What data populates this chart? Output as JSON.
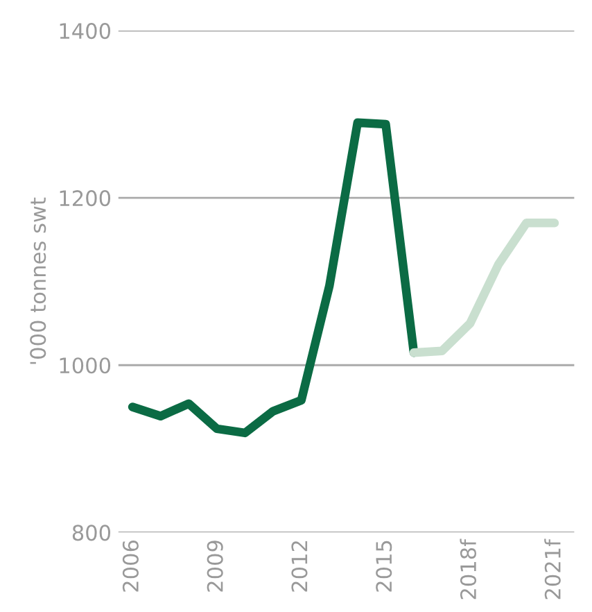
{
  "chart_data": {
    "type": "line",
    "ylabel": "'000 tonnes swt",
    "categories": [
      "2006",
      null,
      null,
      "2009",
      null,
      null,
      "2012",
      null,
      null,
      "2015",
      null,
      null,
      "2018f",
      null,
      null,
      "2021f"
    ],
    "series": [
      {
        "color": "#0b6b44",
        "values": [
          950,
          939,
          954,
          924,
          919,
          945,
          958,
          1095,
          1290,
          1288,
          1015,
          null,
          null,
          null,
          null,
          null
        ]
      },
      {
        "color": "#c9dfcf",
        "values": [
          null,
          null,
          null,
          null,
          null,
          null,
          null,
          null,
          null,
          null,
          1015,
          1017,
          1050,
          1120,
          1170,
          1170
        ]
      }
    ],
    "ylim": [
      800,
      1400
    ],
    "yticks": [
      800,
      1000,
      1200,
      1400
    ],
    "grid": "y",
    "marker": "none",
    "line_style": "solid"
  }
}
